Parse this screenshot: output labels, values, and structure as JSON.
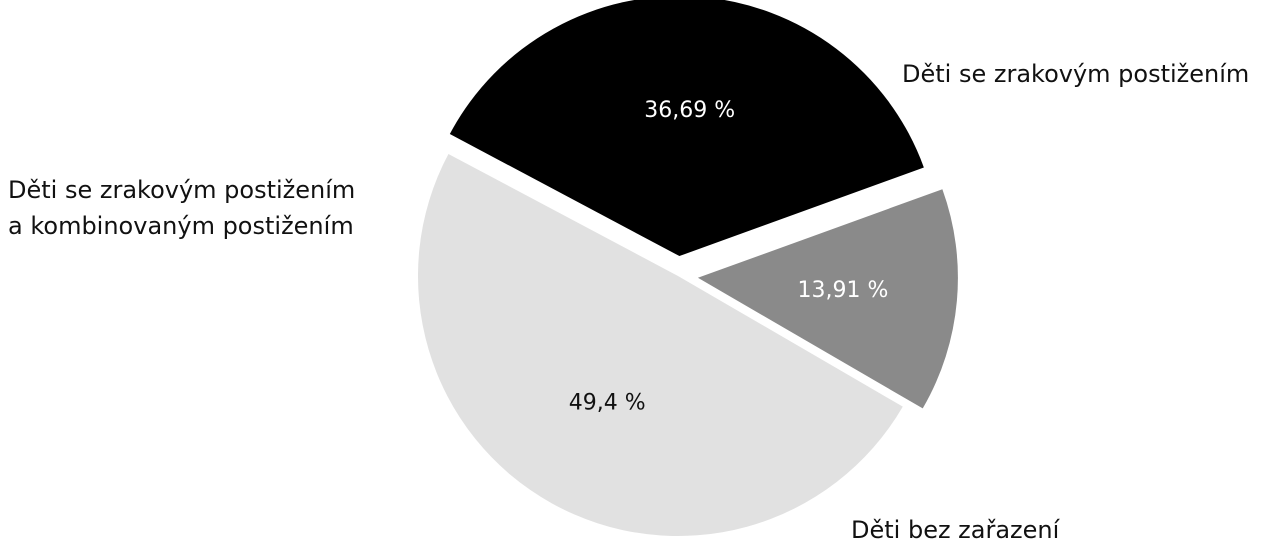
{
  "chart_data": {
    "type": "pie",
    "title": "",
    "categories": [
      "Děti se zrakovým postižením",
      "Děti bez zařazení",
      "Děti se zrakovým postižením a kombinovaným postižením"
    ],
    "values": [
      36.69,
      13.91,
      49.4
    ],
    "value_labels": [
      "36,69 %",
      "13,91 %",
      "49,4 %"
    ],
    "colors": [
      "#000000",
      "#8a8a8a",
      "#e1e1e1"
    ],
    "label_text_colors": [
      "#ffffff",
      "#ffffff",
      "#111111"
    ],
    "exploded": true,
    "legend": "none"
  },
  "labels": {
    "vision": "Děti se zrakovým postižením",
    "combined_line1": "Děti se zrakovým postižením",
    "combined_line2": "a kombinovaným postižením",
    "unassigned": "Děti bez zařazení"
  }
}
